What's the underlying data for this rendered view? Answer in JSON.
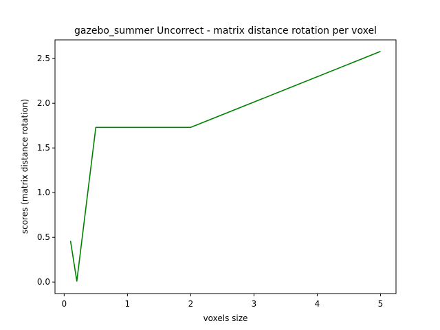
{
  "chart_data": {
    "type": "line",
    "title": "gazebo_summer Uncorrect - matrix distance rotation per voxel",
    "xlabel": "voxels size",
    "ylabel": "scores (matrix distance rotation)",
    "xlim": [
      -0.145,
      5.245
    ],
    "ylim": [
      -0.129,
      2.709
    ],
    "xticks": [
      0,
      1,
      2,
      3,
      4,
      5
    ],
    "xtick_labels": [
      "0",
      "1",
      "2",
      "3",
      "4",
      "5"
    ],
    "yticks": [
      0.0,
      0.5,
      1.0,
      1.5,
      2.0,
      2.5
    ],
    "ytick_labels": [
      "0.0",
      "0.5",
      "1.0",
      "1.5",
      "2.0",
      "2.5"
    ],
    "grid": false,
    "series": [
      {
        "color": "#008000",
        "x": [
          0.1,
          0.2,
          0.5,
          2.0,
          5.0
        ],
        "y": [
          0.46,
          0.01,
          1.73,
          1.73,
          2.58
        ]
      }
    ]
  }
}
